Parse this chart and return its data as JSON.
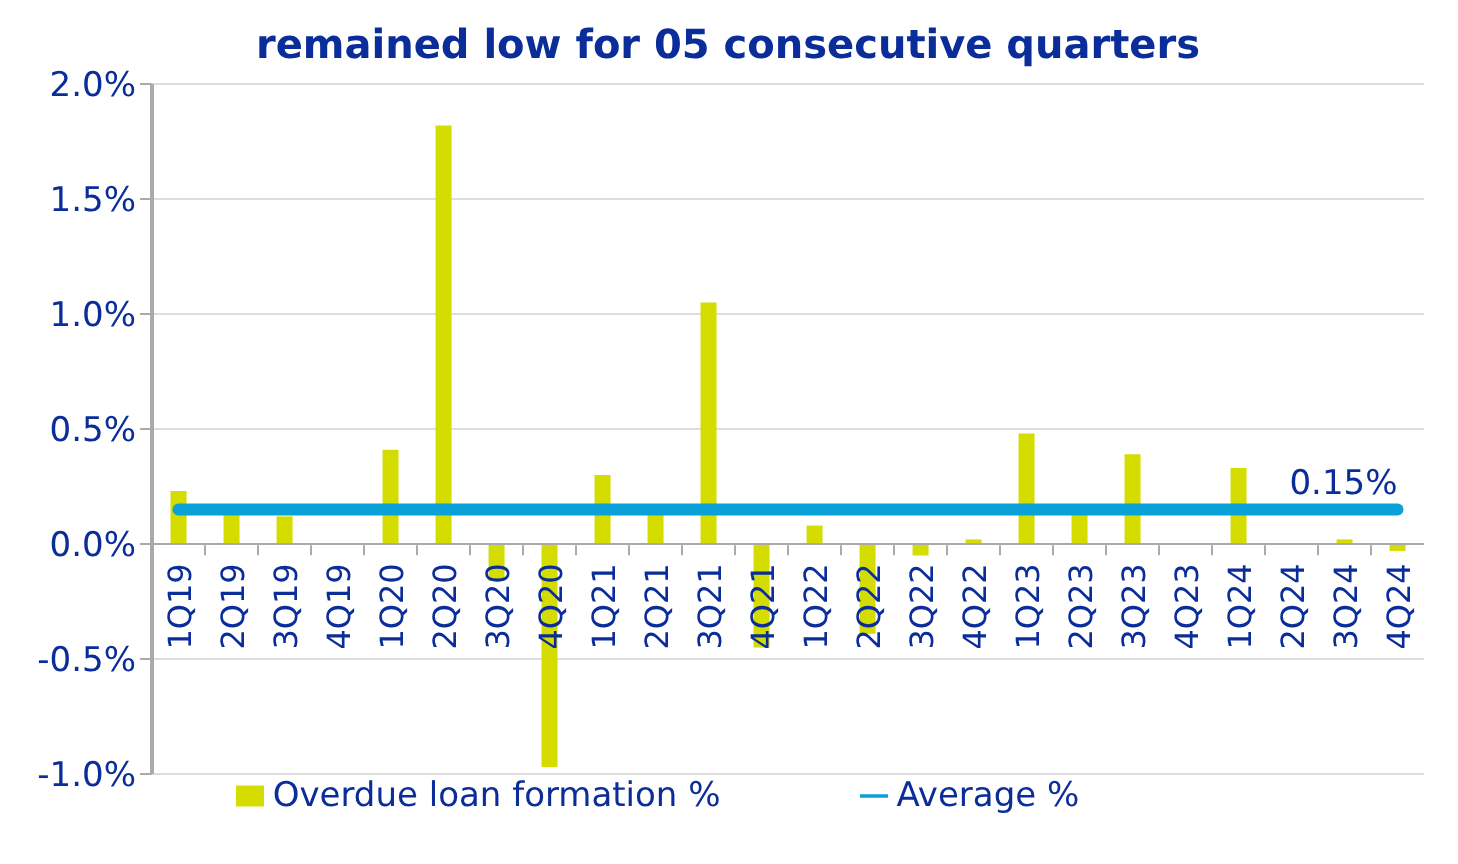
{
  "chart_data": {
    "type": "bar",
    "title": "remained low for 05 consecutive quarters",
    "categories": [
      "1Q19",
      "2Q19",
      "3Q19",
      "4Q19",
      "1Q20",
      "2Q20",
      "3Q20",
      "4Q20",
      "1Q21",
      "2Q21",
      "3Q21",
      "4Q21",
      "1Q22",
      "2Q22",
      "3Q22",
      "4Q22",
      "1Q23",
      "2Q23",
      "3Q23",
      "4Q23",
      "1Q24",
      "2Q24",
      "3Q24",
      "4Q24"
    ],
    "series": [
      {
        "name": "Overdue loan formation %",
        "color": "#d4dc00",
        "values": [
          0.23,
          0.14,
          0.12,
          0,
          0.41,
          1.82,
          -0.16,
          -0.97,
          0.3,
          0.13,
          1.05,
          -0.45,
          0.08,
          -0.39,
          -0.05,
          0.02,
          0.48,
          0.13,
          0.39,
          0,
          0.33,
          0,
          0.02,
          -0.03
        ]
      },
      {
        "name": "Average %",
        "type": "line",
        "color": "#0aa0d8",
        "values": [
          0.15,
          0.15,
          0.15,
          0.15,
          0.15,
          0.15,
          0.15,
          0.15,
          0.15,
          0.15,
          0.15,
          0.15,
          0.15,
          0.15,
          0.15,
          0.15,
          0.15,
          0.15,
          0.15,
          0.15,
          0.15,
          0.15,
          0.15,
          0.15
        ],
        "value_labels": [
          null,
          null,
          null,
          null,
          null,
          null,
          null,
          null,
          null,
          null,
          null,
          null,
          null,
          null,
          null,
          null,
          null,
          null,
          null,
          null,
          null,
          null,
          null,
          "0.15%"
        ]
      }
    ],
    "ylim": [
      -1.0,
      2.0
    ],
    "yticks": [
      {
        "value": -1.0,
        "label": "-1.0%"
      },
      {
        "value": -0.5,
        "label": "-0.5%"
      },
      {
        "value": 0,
        "label": "0.0%"
      },
      {
        "value": 0.5,
        "label": "0.5%"
      },
      {
        "value": 1.0,
        "label": "1.0%"
      },
      {
        "value": 1.5,
        "label": "1.5%"
      },
      {
        "value": 2.0,
        "label": "2.0%"
      }
    ],
    "grid": "y",
    "legend": "bottom"
  }
}
